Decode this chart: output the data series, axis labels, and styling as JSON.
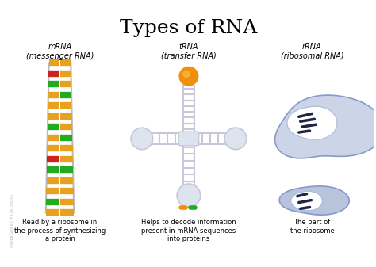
{
  "title": "Types of RNA",
  "title_fontsize": 18,
  "title_font": "serif",
  "bg_color": "#ffffff",
  "mrna_label": "mRNA\n(messenger RNA)",
  "trna_label": "tRNA\n(transfer RNA)",
  "rrna_label": "rRNA\n(ribosomal RNA)",
  "mrna_desc": "Read by a ribosome in\nthe process of synthesizing\na protein",
  "trna_desc": "Helps to decode information\npresent in mRNA sequences\ninto proteins",
  "rrna_desc": "The part of\nthe ribosome",
  "rung_colors_left": [
    "#e8a020",
    "#cc2222",
    "#22aa22",
    "#e8a020",
    "#e8a020",
    "#e8a020",
    "#22aa22",
    "#e8a020",
    "#e8a020",
    "#cc2222",
    "#22aa22",
    "#e8a020",
    "#e8a020",
    "#22aa22",
    "#e8a020"
  ],
  "rung_colors_right": [
    "#e8a020",
    "#e8a020",
    "#e8a020",
    "#22aa22",
    "#e8a020",
    "#e8a020",
    "#e8a020",
    "#22aa22",
    "#e8a020",
    "#e8a020",
    "#22aa22",
    "#e8a020",
    "#e8a020",
    "#e8a020",
    "#e8a020"
  ],
  "orange_color": "#f0900a",
  "green_color": "#22aa22",
  "light_blue": "#ccd4e8",
  "lighter_blue": "#dde4f0",
  "medium_blue": "#b8c4dc",
  "strand_color": "#c8c8d8",
  "label_fontsize": 7,
  "desc_fontsize": 6,
  "watermark": "Adobe Stock | #479158002"
}
